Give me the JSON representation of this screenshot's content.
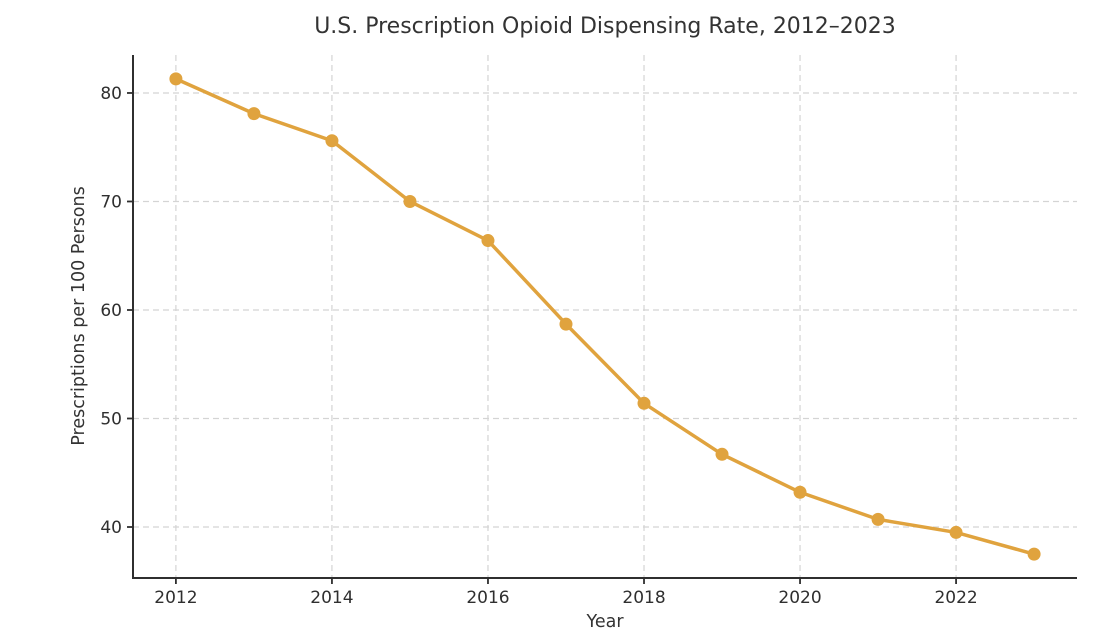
{
  "chart_data": {
    "type": "line",
    "title": "U.S. Prescription Opioid Dispensing Rate, 2012–2023",
    "xlabel": "Year",
    "ylabel": "Prescriptions per 100 Persons",
    "x": [
      2012,
      2013,
      2014,
      2015,
      2016,
      2017,
      2018,
      2019,
      2020,
      2021,
      2022,
      2023
    ],
    "values": [
      81.3,
      78.1,
      75.6,
      70.0,
      66.4,
      58.7,
      51.4,
      46.7,
      43.2,
      40.7,
      39.5,
      37.5
    ],
    "xticks": [
      2012,
      2014,
      2016,
      2018,
      2020,
      2022
    ],
    "yticks": [
      40,
      50,
      60,
      70,
      80
    ],
    "xlim": [
      2011.45,
      2023.55
    ],
    "ylim": [
      35.3,
      83.5
    ],
    "grid": true,
    "grid_style": "dashed",
    "legend": "none",
    "colors": {
      "line": "#E0A33E",
      "marker": "#E0A33E",
      "grid": "#d4d4d4",
      "spine": "#2f2f2f",
      "tick_label": "#2f2f2f",
      "text": "#333333",
      "background": "#ffffff"
    }
  }
}
